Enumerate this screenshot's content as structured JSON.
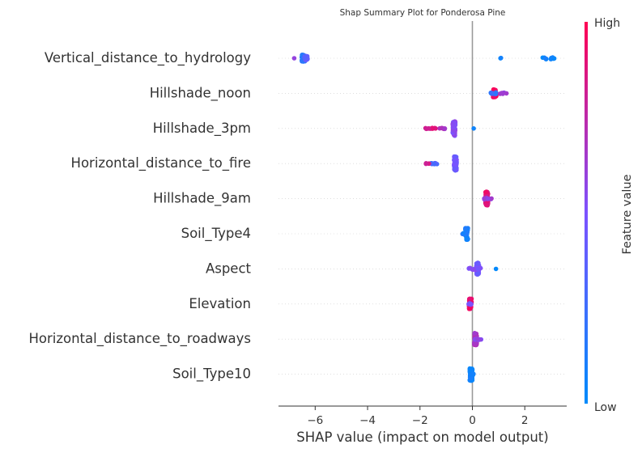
{
  "chart_data": {
    "type": "scatter",
    "title": "Shap Summary Plot for Ponderosa Pine",
    "xlabel": "SHAP value (impact on model output)",
    "colorbar": {
      "label": "Feature value",
      "high_label": "High",
      "low_label": "Low",
      "low_color": "#008bfb",
      "high_color": "#ff0052"
    },
    "xlim": [
      -7.4,
      3.6
    ],
    "xticks": [
      {
        "value": -6,
        "label": "−6"
      },
      {
        "value": -4,
        "label": "−4"
      },
      {
        "value": -2,
        "label": "−2"
      },
      {
        "value": 0,
        "label": "0"
      },
      {
        "value": 2,
        "label": "2"
      }
    ],
    "features": [
      {
        "name": "Vertical_distance_to_hydrology",
        "clusters": [
          {
            "x": -6.45,
            "spread": 0.06,
            "width": 0.2,
            "count": 60,
            "value": 0.15
          },
          {
            "x": -6.35,
            "spread": 0.06,
            "width": 0.14,
            "count": 20,
            "value": 0.4
          },
          {
            "x": -6.8,
            "spread": 0.0,
            "width": 0.0,
            "count": 1,
            "value": 0.55
          },
          {
            "x": 1.1,
            "spread": 0.03,
            "width": 0.03,
            "count": 2,
            "value": 0.05
          },
          {
            "x": 2.75,
            "spread": 0.08,
            "width": 0.06,
            "count": 5,
            "value": 0.05
          },
          {
            "x": 3.05,
            "spread": 0.08,
            "width": 0.06,
            "count": 5,
            "value": 0.05
          }
        ]
      },
      {
        "name": "Hillshade_noon",
        "clusters": [
          {
            "x": 0.85,
            "spread": 0.06,
            "width": 0.22,
            "count": 60,
            "value": 0.95
          },
          {
            "x": 0.8,
            "spread": 0.1,
            "width": 0.05,
            "count": 15,
            "value": 0.2
          },
          {
            "x": 1.1,
            "spread": 0.12,
            "width": 0.04,
            "count": 6,
            "value": 0.6
          },
          {
            "x": 1.3,
            "spread": 0.0,
            "width": 0.0,
            "count": 1,
            "value": 0.7
          }
        ]
      },
      {
        "name": "Hillshade_3pm",
        "clusters": [
          {
            "x": -0.7,
            "spread": 0.05,
            "width": 0.42,
            "count": 70,
            "value": 0.55
          },
          {
            "x": -1.6,
            "spread": 0.2,
            "width": 0.03,
            "count": 10,
            "value": 0.85
          },
          {
            "x": -1.1,
            "spread": 0.15,
            "width": 0.03,
            "count": 6,
            "value": 0.7
          },
          {
            "x": 0.05,
            "spread": 0.0,
            "width": 0.0,
            "count": 1,
            "value": 0.05
          }
        ]
      },
      {
        "name": "Horizontal_distance_to_fire",
        "clusters": [
          {
            "x": -0.65,
            "spread": 0.05,
            "width": 0.4,
            "count": 60,
            "value": 0.45
          },
          {
            "x": -1.45,
            "spread": 0.15,
            "width": 0.03,
            "count": 12,
            "value": 0.3
          },
          {
            "x": -1.7,
            "spread": 0.08,
            "width": 0.02,
            "count": 4,
            "value": 0.85
          }
        ]
      },
      {
        "name": "Hillshade_9am",
        "clusters": [
          {
            "x": 0.55,
            "spread": 0.05,
            "width": 0.4,
            "count": 60,
            "value": 0.9
          },
          {
            "x": 0.6,
            "spread": 0.15,
            "width": 0.04,
            "count": 14,
            "value": 0.6
          }
        ]
      },
      {
        "name": "Soil_Type4",
        "clusters": [
          {
            "x": -0.22,
            "spread": 0.05,
            "width": 0.34,
            "count": 55,
            "value": 0.08
          },
          {
            "x": -0.3,
            "spread": 0.1,
            "width": 0.03,
            "count": 8,
            "value": 0.12
          }
        ]
      },
      {
        "name": "Aspect",
        "clusters": [
          {
            "x": 0.2,
            "spread": 0.05,
            "width": 0.36,
            "count": 55,
            "value": 0.45
          },
          {
            "x": 0.1,
            "spread": 0.25,
            "width": 0.05,
            "count": 14,
            "value": 0.5
          },
          {
            "x": 0.9,
            "spread": 0.0,
            "width": 0.0,
            "count": 1,
            "value": 0.05
          }
        ]
      },
      {
        "name": "Elevation",
        "clusters": [
          {
            "x": -0.08,
            "spread": 0.05,
            "width": 0.3,
            "count": 55,
            "value": 0.92
          },
          {
            "x": -0.12,
            "spread": 0.08,
            "width": 0.04,
            "count": 8,
            "value": 0.5
          }
        ]
      },
      {
        "name": "Horizontal_distance_to_roadways",
        "clusters": [
          {
            "x": 0.12,
            "spread": 0.05,
            "width": 0.34,
            "count": 55,
            "value": 0.7
          },
          {
            "x": 0.22,
            "spread": 0.12,
            "width": 0.04,
            "count": 10,
            "value": 0.55
          }
        ]
      },
      {
        "name": "Soil_Type10",
        "clusters": [
          {
            "x": -0.05,
            "spread": 0.05,
            "width": 0.38,
            "count": 60,
            "value": 0.08
          },
          {
            "x": 0.0,
            "spread": 0.06,
            "width": 0.04,
            "count": 6,
            "value": 0.1
          }
        ]
      }
    ]
  }
}
